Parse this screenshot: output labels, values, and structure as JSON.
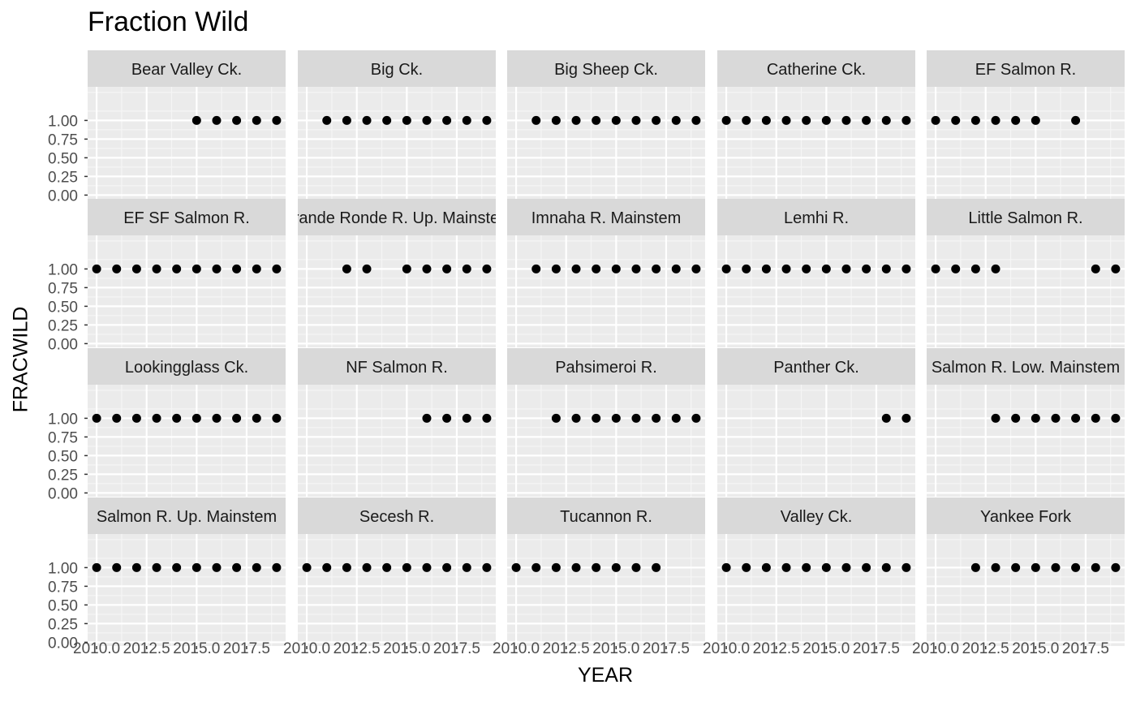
{
  "chart_data": {
    "type": "scatter",
    "title": "Fraction Wild",
    "xlabel": "YEAR",
    "ylabel": "FRACWILD",
    "xlim": [
      2009.55,
      2019.45
    ],
    "ylim": [
      -0.05,
      1.45
    ],
    "x_ticks": [
      2010,
      2012.5,
      2015,
      2017.5
    ],
    "x_tick_labels": [
      "2010.0",
      "2012.5",
      "2015.0",
      "2017.5"
    ],
    "y_ticks": [
      0,
      0.25,
      0.5,
      0.75,
      1
    ],
    "y_tick_labels": [
      "0.00",
      "0.25",
      "0.50",
      "0.75",
      "1.00"
    ],
    "grid": true,
    "point_color": "#000000",
    "panel_bg": "#EBEBEB",
    "strip_bg": "#D9D9D9",
    "facets": [
      {
        "label": "Bear Valley Ck.",
        "x": [
          2015,
          2016,
          2017,
          2018,
          2019
        ],
        "y": [
          1,
          1,
          1,
          1,
          1
        ]
      },
      {
        "label": "Big Ck.",
        "x": [
          2011,
          2012,
          2013,
          2014,
          2015,
          2016,
          2017,
          2018,
          2019
        ],
        "y": [
          1,
          1,
          1,
          1,
          1,
          1,
          1,
          1,
          1
        ]
      },
      {
        "label": "Big Sheep Ck.",
        "x": [
          2011,
          2012,
          2013,
          2014,
          2015,
          2016,
          2017,
          2018,
          2019
        ],
        "y": [
          1,
          1,
          1,
          1,
          1,
          1,
          1,
          1,
          1
        ]
      },
      {
        "label": "Catherine Ck.",
        "x": [
          2010,
          2011,
          2012,
          2013,
          2014,
          2015,
          2016,
          2017,
          2018,
          2019
        ],
        "y": [
          1,
          1,
          1,
          1,
          1,
          1,
          1,
          1,
          1,
          1
        ]
      },
      {
        "label": "EF Salmon R.",
        "x": [
          2010,
          2011,
          2012,
          2013,
          2014,
          2015,
          2017
        ],
        "y": [
          1,
          1,
          1,
          1,
          1,
          1,
          1
        ]
      },
      {
        "label": "EF SF Salmon R.",
        "x": [
          2010,
          2011,
          2012,
          2013,
          2014,
          2015,
          2016,
          2017,
          2018,
          2019
        ],
        "y": [
          1,
          1,
          1,
          1,
          1,
          1,
          1,
          1,
          1,
          1
        ]
      },
      {
        "label": "Grande Ronde R. Up. Mainstem",
        "x": [
          2012,
          2013,
          2015,
          2016,
          2017,
          2018,
          2019
        ],
        "y": [
          1,
          1,
          1,
          1,
          1,
          1,
          1
        ]
      },
      {
        "label": "Imnaha R. Mainstem",
        "x": [
          2011,
          2012,
          2013,
          2014,
          2015,
          2016,
          2017,
          2018,
          2019
        ],
        "y": [
          1,
          1,
          1,
          1,
          1,
          1,
          1,
          1,
          1
        ]
      },
      {
        "label": "Lemhi R.",
        "x": [
          2010,
          2011,
          2012,
          2013,
          2014,
          2015,
          2016,
          2017,
          2018,
          2019
        ],
        "y": [
          1,
          1,
          1,
          1,
          1,
          1,
          1,
          1,
          1,
          1
        ]
      },
      {
        "label": "Little Salmon R.",
        "x": [
          2010,
          2011,
          2012,
          2013,
          2018,
          2019
        ],
        "y": [
          1,
          1,
          1,
          1,
          1,
          1
        ]
      },
      {
        "label": "Lookingglass Ck.",
        "x": [
          2010,
          2011,
          2012,
          2013,
          2014,
          2015,
          2016,
          2017,
          2018,
          2019
        ],
        "y": [
          1,
          1,
          1,
          1,
          1,
          1,
          1,
          1,
          1,
          1
        ]
      },
      {
        "label": "NF Salmon R.",
        "x": [
          2016,
          2017,
          2018,
          2019
        ],
        "y": [
          1,
          1,
          1,
          1
        ]
      },
      {
        "label": "Pahsimeroi R.",
        "x": [
          2012,
          2013,
          2014,
          2015,
          2016,
          2017,
          2018,
          2019
        ],
        "y": [
          1,
          1,
          1,
          1,
          1,
          1,
          1,
          1
        ]
      },
      {
        "label": "Panther Ck.",
        "x": [
          2018,
          2019
        ],
        "y": [
          1,
          1
        ]
      },
      {
        "label": "Salmon R. Low. Mainstem",
        "x": [
          2013,
          2014,
          2015,
          2016,
          2017,
          2018,
          2019
        ],
        "y": [
          1,
          1,
          1,
          1,
          1,
          1,
          1
        ]
      },
      {
        "label": "Salmon R. Up. Mainstem",
        "x": [
          2010,
          2011,
          2012,
          2013,
          2014,
          2015,
          2016,
          2017,
          2018,
          2019
        ],
        "y": [
          1,
          1,
          1,
          1,
          1,
          1,
          1,
          1,
          1,
          1
        ]
      },
      {
        "label": "Secesh R.",
        "x": [
          2010,
          2011,
          2012,
          2013,
          2014,
          2015,
          2016,
          2017,
          2018,
          2019
        ],
        "y": [
          1,
          1,
          1,
          1,
          1,
          1,
          1,
          1,
          1,
          1
        ]
      },
      {
        "label": "Tucannon R.",
        "x": [
          2010,
          2011,
          2012,
          2013,
          2014,
          2015,
          2016,
          2017
        ],
        "y": [
          1,
          1,
          1,
          1,
          1,
          1,
          1,
          1
        ]
      },
      {
        "label": "Valley Ck.",
        "x": [
          2010,
          2011,
          2012,
          2013,
          2014,
          2015,
          2016,
          2017,
          2018,
          2019
        ],
        "y": [
          1,
          1,
          1,
          1,
          1,
          1,
          1,
          1,
          1,
          1
        ]
      },
      {
        "label": "Yankee Fork",
        "x": [
          2012,
          2013,
          2014,
          2015,
          2016,
          2017,
          2018,
          2019
        ],
        "y": [
          1,
          1,
          1,
          1,
          1,
          1,
          1,
          1
        ]
      }
    ]
  }
}
